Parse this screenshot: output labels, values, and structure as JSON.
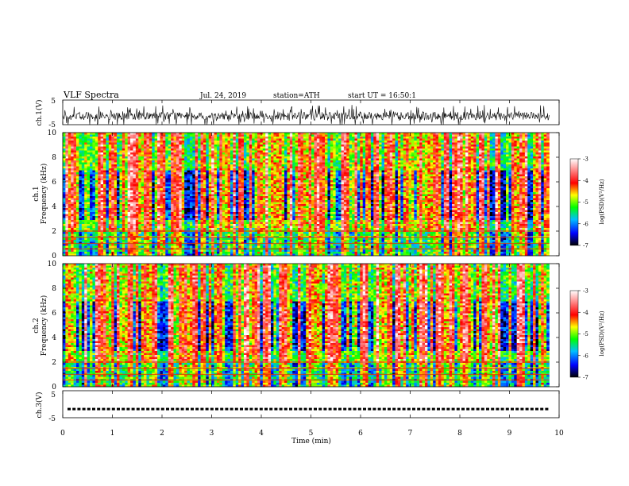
{
  "header": {
    "title": "VLF Spectra",
    "date": "Jul. 24, 2019",
    "station": "station=ATH",
    "start": "start UT = 16:50:1"
  },
  "chart_data": [
    {
      "type": "line",
      "panel": "ch1-waveform",
      "ylabel": "ch.1(V)",
      "ylim": [
        -5,
        5
      ],
      "yticks": [
        "5",
        "-5"
      ],
      "xlim": [
        0,
        10
      ],
      "data_end_min": 9.8,
      "description_values": {
        "baseline_v": -1.5,
        "max_amplitude_v": 5
      }
    },
    {
      "type": "heatmap",
      "panel": "ch1-spectrogram",
      "ylabel": "ch.1\nFrequency (kHz)",
      "ylim": [
        0,
        10
      ],
      "yticks": [
        "0",
        "2",
        "4",
        "6",
        "8",
        "10"
      ],
      "xlim": [
        0,
        10
      ],
      "data_end_min": 9.8,
      "colorbar": {
        "label": "log(PSD)(V²/Hz)",
        "range": [
          -7,
          -3
        ],
        "ticks": [
          "-3",
          "-4",
          "-5",
          "-6",
          "-7"
        ]
      }
    },
    {
      "type": "heatmap",
      "panel": "ch2-spectrogram",
      "ylabel": "ch.2\nFrequency (kHz)",
      "ylim": [
        0,
        10
      ],
      "yticks": [
        "0",
        "2",
        "4",
        "6",
        "8",
        "10"
      ],
      "xlim": [
        0,
        10
      ],
      "data_end_min": 9.8,
      "colorbar": {
        "label": "log(PSD)(V²/Hz)",
        "range": [
          -7,
          -3
        ],
        "ticks": [
          "-3",
          "-4",
          "-5",
          "-6",
          "-7"
        ]
      }
    },
    {
      "type": "scatter",
      "panel": "ch3-waveform",
      "ylabel": "ch.3(V)",
      "ylim": [
        -5,
        5
      ],
      "yticks": [
        "5",
        "-5"
      ],
      "xlim": [
        0,
        10
      ],
      "data_end_min": 9.8,
      "description_values": {
        "level_v": -1.8
      }
    }
  ],
  "xaxis": {
    "label": "Time (min)",
    "ticks": [
      "0",
      "1",
      "2",
      "3",
      "4",
      "5",
      "6",
      "7",
      "8",
      "9",
      "10"
    ]
  },
  "colors": {
    "colormap": [
      "#000000",
      "#0000ff",
      "#00bfff",
      "#00ff00",
      "#ffff00",
      "#ff0000",
      "#ffffff"
    ]
  }
}
